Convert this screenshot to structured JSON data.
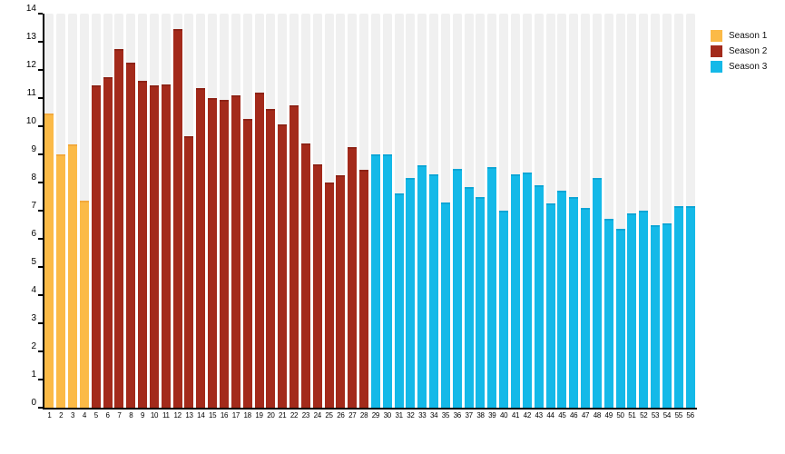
{
  "chart_data": {
    "type": "bar",
    "categories": [
      1,
      2,
      3,
      4,
      5,
      6,
      7,
      8,
      9,
      10,
      11,
      12,
      13,
      14,
      15,
      16,
      17,
      18,
      19,
      20,
      21,
      22,
      23,
      24,
      25,
      26,
      27,
      28,
      29,
      30,
      31,
      32,
      33,
      34,
      35,
      36,
      37,
      38,
      39,
      40,
      41,
      42,
      43,
      44,
      45,
      46,
      47,
      48,
      49,
      50,
      51,
      52,
      53,
      54,
      55,
      56
    ],
    "series": [
      {
        "name": "Season 1",
        "color": "#FBBA47",
        "cap_color": "#F2A93C",
        "start_category": 1,
        "values": [
          10.45,
          9.0,
          9.35,
          7.35
        ]
      },
      {
        "name": "Season 2",
        "color": "#A32A1B",
        "cap_color": "#8E2316",
        "start_category": 5,
        "values": [
          11.45,
          11.75,
          12.75,
          12.25,
          11.6,
          11.45,
          11.5,
          13.45,
          9.65,
          11.35,
          11.0,
          10.95,
          11.1,
          10.25,
          11.2,
          10.6,
          10.05,
          10.75,
          9.4,
          8.65,
          8.0,
          8.25,
          9.25,
          8.45
        ]
      },
      {
        "name": "Season 3",
        "color": "#14B9E8",
        "cap_color": "#0EA6D6",
        "start_category": 29,
        "values": [
          9.0,
          9.0,
          7.6,
          8.15,
          8.6,
          8.3,
          7.3,
          8.5,
          7.85,
          7.5,
          8.55,
          7.0,
          8.3,
          8.35,
          7.9,
          7.25,
          7.7,
          7.5,
          7.1,
          8.15,
          6.7,
          6.35,
          6.9,
          7.0,
          6.5,
          6.55,
          7.15,
          7.15
        ]
      }
    ],
    "yticks": [
      0,
      1,
      2,
      3,
      4,
      5,
      6,
      7,
      8,
      9,
      10,
      11,
      12,
      13,
      14
    ],
    "ylim": [
      0,
      14
    ],
    "grid": "off",
    "legend_position": "top-right",
    "background_stripe_color": "#F0F0F0",
    "axis_color": "#000000"
  }
}
